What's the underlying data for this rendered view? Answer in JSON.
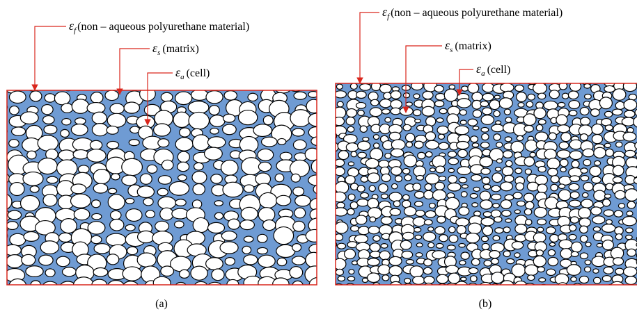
{
  "panels": [
    {
      "caption": "(a)",
      "labels": [
        {
          "symbol": "ε",
          "subscript": "f",
          "text": "(non – aqueous polyurethane material)"
        },
        {
          "symbol": "ε",
          "subscript": "s",
          "text": "(matrix)"
        },
        {
          "symbol": "ε",
          "subscript": "a",
          "text": "(cell)"
        }
      ]
    },
    {
      "caption": "(b)",
      "labels": [
        {
          "symbol": "ε",
          "subscript": "f",
          "text": "(non – aqueous polyurethane material)"
        },
        {
          "symbol": "ε",
          "subscript": "s",
          "text": "(matrix)"
        },
        {
          "symbol": "ε",
          "subscript": "a",
          "text": "(cell)"
        }
      ]
    }
  ]
}
